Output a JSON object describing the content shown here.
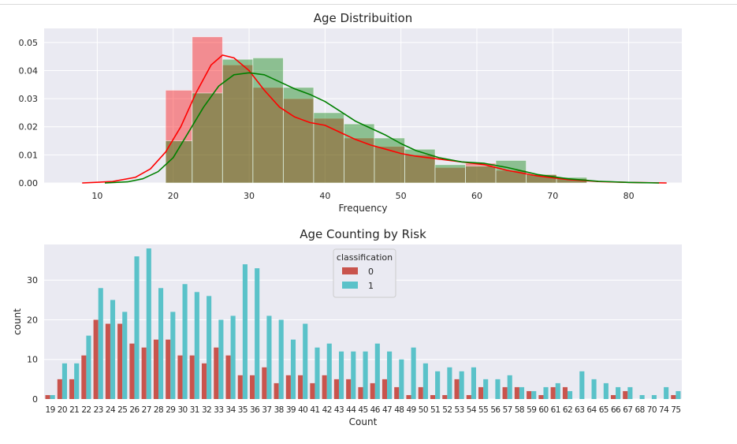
{
  "chart_data": [
    {
      "type": "histogram",
      "title": "Age Distribuition",
      "xlabel": "Frequency",
      "ylabel": "",
      "xlim": [
        3,
        87
      ],
      "ylim": [
        0,
        0.055
      ],
      "x_ticks": [
        10,
        20,
        30,
        40,
        50,
        60,
        70,
        80
      ],
      "y_ticks": [
        0.0,
        0.01,
        0.02,
        0.03,
        0.04,
        0.05
      ],
      "y_tick_labels": [
        "0.00",
        "0.01",
        "0.02",
        "0.03",
        "0.04",
        "0.05"
      ],
      "grid": true,
      "series": [
        {
          "color": "#ff0000",
          "bins": [
            {
              "x0": 19.0,
              "x1": 22.5,
              "value": 0.033
            },
            {
              "x0": 22.5,
              "x1": 26.5,
              "value": 0.052
            },
            {
              "x0": 26.5,
              "x1": 30.5,
              "value": 0.042
            },
            {
              "x0": 30.5,
              "x1": 34.5,
              "value": 0.034
            },
            {
              "x0": 34.5,
              "x1": 38.5,
              "value": 0.03
            },
            {
              "x0": 38.5,
              "x1": 42.5,
              "value": 0.023
            },
            {
              "x0": 42.5,
              "x1": 46.5,
              "value": 0.016
            },
            {
              "x0": 46.5,
              "x1": 50.5,
              "value": 0.013
            },
            {
              "x0": 50.5,
              "x1": 54.5,
              "value": 0.01
            },
            {
              "x0": 54.5,
              "x1": 58.5,
              "value": 0.0055
            },
            {
              "x0": 58.5,
              "x1": 62.5,
              "value": 0.007
            },
            {
              "x0": 62.5,
              "x1": 66.5,
              "value": 0.0045
            },
            {
              "x0": 66.5,
              "x1": 70.5,
              "value": 0.003
            },
            {
              "x0": 70.5,
              "x1": 74.5,
              "value": 0.0015
            }
          ],
          "kde": [
            [
              8,
              0.0
            ],
            [
              12,
              0.0005
            ],
            [
              15,
              0.002
            ],
            [
              17,
              0.005
            ],
            [
              19,
              0.011
            ],
            [
              21,
              0.02
            ],
            [
              23,
              0.032
            ],
            [
              25,
              0.042
            ],
            [
              26.5,
              0.0455
            ],
            [
              28,
              0.0445
            ],
            [
              30,
              0.04
            ],
            [
              32,
              0.033
            ],
            [
              34,
              0.027
            ],
            [
              36,
              0.0235
            ],
            [
              38,
              0.0215
            ],
            [
              40,
              0.0205
            ],
            [
              42,
              0.018
            ],
            [
              44,
              0.0155
            ],
            [
              46,
              0.0135
            ],
            [
              48,
              0.012
            ],
            [
              50,
              0.0105
            ],
            [
              52,
              0.0095
            ],
            [
              55,
              0.0085
            ],
            [
              58,
              0.0075
            ],
            [
              61,
              0.0065
            ],
            [
              64,
              0.0045
            ],
            [
              68,
              0.0025
            ],
            [
              72,
              0.0012
            ],
            [
              76,
              0.0005
            ],
            [
              80,
              0.0002
            ],
            [
              85,
              0.0
            ]
          ]
        },
        {
          "color": "#008000",
          "bins": [
            {
              "x0": 19.0,
              "x1": 22.5,
              "value": 0.015
            },
            {
              "x0": 22.5,
              "x1": 26.5,
              "value": 0.032
            },
            {
              "x0": 26.5,
              "x1": 30.5,
              "value": 0.044
            },
            {
              "x0": 30.5,
              "x1": 34.5,
              "value": 0.0445
            },
            {
              "x0": 34.5,
              "x1": 38.5,
              "value": 0.034
            },
            {
              "x0": 38.5,
              "x1": 42.5,
              "value": 0.025
            },
            {
              "x0": 42.5,
              "x1": 46.5,
              "value": 0.021
            },
            {
              "x0": 46.5,
              "x1": 50.5,
              "value": 0.016
            },
            {
              "x0": 50.5,
              "x1": 54.5,
              "value": 0.012
            },
            {
              "x0": 54.5,
              "x1": 58.5,
              "value": 0.0065
            },
            {
              "x0": 58.5,
              "x1": 62.5,
              "value": 0.006
            },
            {
              "x0": 62.5,
              "x1": 66.5,
              "value": 0.008
            },
            {
              "x0": 66.5,
              "x1": 70.5,
              "value": 0.003
            },
            {
              "x0": 70.5,
              "x1": 74.5,
              "value": 0.002
            }
          ],
          "kde": [
            [
              11,
              0.0
            ],
            [
              14,
              0.0004
            ],
            [
              16,
              0.0015
            ],
            [
              18,
              0.004
            ],
            [
              20,
              0.009
            ],
            [
              22,
              0.018
            ],
            [
              24,
              0.027
            ],
            [
              26,
              0.0345
            ],
            [
              28,
              0.0385
            ],
            [
              30,
              0.0392
            ],
            [
              32,
              0.0385
            ],
            [
              34,
              0.036
            ],
            [
              36,
              0.0335
            ],
            [
              38,
              0.0315
            ],
            [
              40,
              0.029
            ],
            [
              42,
              0.0255
            ],
            [
              44,
              0.022
            ],
            [
              46,
              0.0195
            ],
            [
              48,
              0.017
            ],
            [
              50,
              0.014
            ],
            [
              52,
              0.0115
            ],
            [
              55,
              0.009
            ],
            [
              58,
              0.0075
            ],
            [
              61,
              0.007
            ],
            [
              64,
              0.0055
            ],
            [
              68,
              0.003
            ],
            [
              72,
              0.0015
            ],
            [
              76,
              0.0006
            ],
            [
              80,
              0.0002
            ],
            [
              84,
              0.0
            ]
          ]
        }
      ]
    },
    {
      "type": "bar",
      "title": "Age Counting by Risk",
      "xlabel": "Count",
      "ylabel": "count",
      "ylim": [
        0,
        39
      ],
      "y_ticks": [
        0,
        10,
        20,
        30
      ],
      "grid": true,
      "legend": {
        "title": "classification",
        "placement": "upper-center"
      },
      "categories": [
        "19",
        "20",
        "21",
        "22",
        "23",
        "24",
        "25",
        "26",
        "27",
        "28",
        "29",
        "30",
        "31",
        "32",
        "33",
        "34",
        "35",
        "36",
        "37",
        "38",
        "39",
        "40",
        "41",
        "42",
        "43",
        "44",
        "45",
        "46",
        "47",
        "48",
        "49",
        "50",
        "51",
        "52",
        "53",
        "54",
        "55",
        "56",
        "57",
        "58",
        "59",
        "60",
        "61",
        "62",
        "63",
        "64",
        "65",
        "66",
        "67",
        "68",
        "70",
        "74",
        "75"
      ],
      "series": [
        {
          "name": "0",
          "color": "#c9544d",
          "values": [
            1,
            5,
            5,
            11,
            20,
            19,
            19,
            14,
            13,
            15,
            15,
            11,
            11,
            9,
            13,
            11,
            6,
            6,
            8,
            4,
            6,
            6,
            4,
            6,
            5,
            5,
            3,
            4,
            5,
            3,
            1,
            3,
            1,
            1,
            5,
            1,
            3,
            0,
            3,
            3,
            2,
            1,
            3,
            3,
            0,
            0,
            0,
            1,
            2,
            0,
            0,
            0,
            1
          ]
        },
        {
          "name": "1",
          "color": "#5ac2c9",
          "values": [
            1,
            9,
            9,
            16,
            28,
            25,
            22,
            36,
            38,
            28,
            22,
            29,
            27,
            26,
            20,
            21,
            34,
            33,
            21,
            20,
            15,
            19,
            13,
            14,
            12,
            12,
            12,
            14,
            12,
            10,
            13,
            9,
            7,
            8,
            7,
            8,
            5,
            5,
            6,
            3,
            2,
            3,
            4,
            2,
            7,
            5,
            4,
            3,
            3,
            1,
            1,
            3,
            2
          ]
        }
      ]
    }
  ]
}
